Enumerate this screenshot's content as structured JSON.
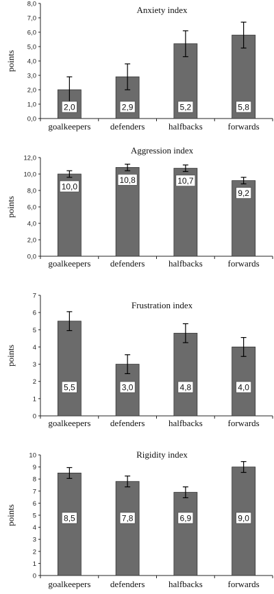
{
  "chart_data": [
    {
      "type": "bar",
      "title": "Anxiety index",
      "ylabel": "points",
      "xlabel": "",
      "categories": [
        "goalkeepers",
        "defenders",
        "halfbacks",
        "forwards"
      ],
      "values": [
        2.0,
        2.9,
        5.2,
        5.8
      ],
      "value_labels": [
        "2,0",
        "2,9",
        "5,2",
        "5,8"
      ],
      "errors": [
        0.9,
        0.9,
        0.9,
        0.9
      ],
      "ylim": [
        0,
        8
      ],
      "yticks": [
        0,
        1,
        2,
        3,
        4,
        5,
        6,
        7,
        8
      ],
      "ytick_labels": [
        "0,0",
        "1,0",
        "2,0",
        "3,0",
        "4,0",
        "5,0",
        "6,0",
        "7,0",
        "8,0"
      ],
      "grid": false,
      "bar_color": "#6b6b6b"
    },
    {
      "type": "bar",
      "title": "Aggression index",
      "ylabel": "points",
      "xlabel": "",
      "categories": [
        "goalkeepers",
        "defenders",
        "halfbacks",
        "forwards"
      ],
      "values": [
        10.0,
        10.8,
        10.7,
        9.2
      ],
      "value_labels": [
        "10,0",
        "10,8",
        "10,7",
        "9,2"
      ],
      "errors": [
        0.4,
        0.4,
        0.4,
        0.4
      ],
      "ylim": [
        0,
        12
      ],
      "yticks": [
        0,
        2,
        4,
        6,
        8,
        10,
        12
      ],
      "ytick_labels": [
        "0,0",
        "2,0",
        "4,0",
        "6,0",
        "8,0",
        "10,0",
        "12,0"
      ],
      "grid": false,
      "bar_color": "#6b6b6b"
    },
    {
      "type": "bar",
      "title": "Frustration index",
      "ylabel": "points",
      "xlabel": "",
      "categories": [
        "goalkeepers",
        "defenders",
        "halfbacks",
        "forwards"
      ],
      "values": [
        5.5,
        3.0,
        4.8,
        4.0
      ],
      "value_labels": [
        "5,5",
        "3,0",
        "4,8",
        "4,0"
      ],
      "errors": [
        0.55,
        0.55,
        0.55,
        0.55
      ],
      "ylim": [
        0,
        7
      ],
      "yticks": [
        0,
        1,
        2,
        3,
        4,
        5,
        6,
        7
      ],
      "ytick_labels": [
        "0",
        "1",
        "2",
        "3",
        "4",
        "5",
        "6",
        "7"
      ],
      "grid": false,
      "bar_color": "#6b6b6b"
    },
    {
      "type": "bar",
      "title": "Rigidity index",
      "ylabel": "points",
      "xlabel": "",
      "categories": [
        "goalkeepers",
        "defenders",
        "halfbacks",
        "forwards"
      ],
      "values": [
        8.5,
        7.8,
        6.9,
        9.0
      ],
      "value_labels": [
        "8,5",
        "7,8",
        "6,9",
        "9,0"
      ],
      "errors": [
        0.45,
        0.45,
        0.45,
        0.45
      ],
      "ylim": [
        0,
        10
      ],
      "yticks": [
        0,
        1,
        2,
        3,
        4,
        5,
        6,
        7,
        8,
        9,
        10
      ],
      "ytick_labels": [
        "0",
        "1",
        "2",
        "3",
        "4",
        "5",
        "6",
        "7",
        "8",
        "9",
        "10"
      ],
      "grid": false,
      "bar_color": "#6b6b6b"
    }
  ]
}
